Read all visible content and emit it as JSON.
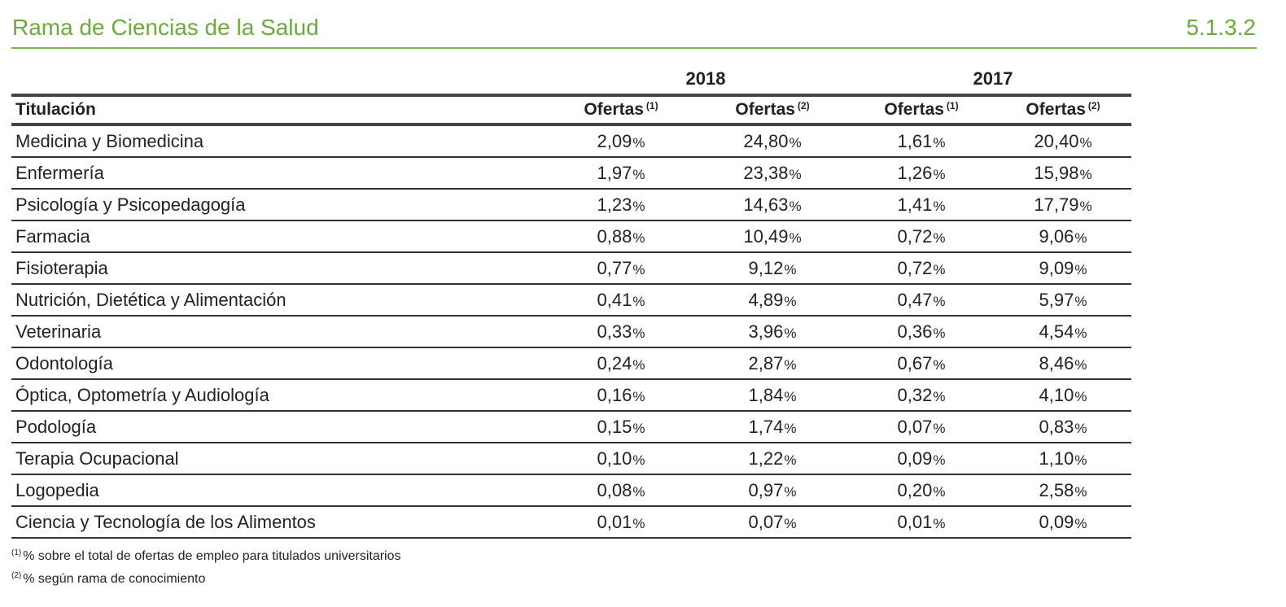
{
  "header": {
    "title": "Rama de Ciencias de la Salud",
    "section_number": "5.1.3.2"
  },
  "years": [
    "2018",
    "2017"
  ],
  "columns": {
    "title": "Titulación",
    "offers": [
      {
        "label": "Ofertas",
        "note": "(1)"
      },
      {
        "label": "Ofertas",
        "note": "(2)"
      },
      {
        "label": "Ofertas",
        "note": "(1)"
      },
      {
        "label": "Ofertas",
        "note": "(2)"
      }
    ]
  },
  "percent_sign": "%",
  "rows": [
    {
      "name": "Medicina y Biomedicina",
      "values": [
        "2,09",
        "24,80",
        "1,61",
        "20,40"
      ]
    },
    {
      "name": "Enfermería",
      "values": [
        "1,97",
        "23,38",
        "1,26",
        "15,98"
      ]
    },
    {
      "name": "Psicología y Psicopedagogía",
      "values": [
        "1,23",
        "14,63",
        "1,41",
        "17,79"
      ]
    },
    {
      "name": "Farmacia",
      "values": [
        "0,88",
        "10,49",
        "0,72",
        "9,06"
      ]
    },
    {
      "name": "Fisioterapia",
      "values": [
        "0,77",
        "9,12",
        "0,72",
        "9,09"
      ]
    },
    {
      "name": "Nutrición, Dietética y Alimentación",
      "values": [
        "0,41",
        "4,89",
        "0,47",
        "5,97"
      ]
    },
    {
      "name": "Veterinaria",
      "values": [
        "0,33",
        "3,96",
        "0,36",
        "4,54"
      ]
    },
    {
      "name": "Odontología",
      "values": [
        "0,24",
        "2,87",
        "0,67",
        "8,46"
      ]
    },
    {
      "name": "Óptica, Optometría y Audiología",
      "values": [
        "0,16",
        "1,84",
        "0,32",
        "4,10"
      ]
    },
    {
      "name": "Podología",
      "values": [
        "0,15",
        "1,74",
        "0,07",
        "0,83"
      ]
    },
    {
      "name": "Terapia Ocupacional",
      "values": [
        "0,10",
        "1,22",
        "0,09",
        "1,10"
      ]
    },
    {
      "name": "Logopedia",
      "values": [
        "0,08",
        "0,97",
        "0,20",
        "2,58"
      ]
    },
    {
      "name": "Ciencia y Tecnología de los Alimentos",
      "values": [
        "0,01",
        "0,07",
        "0,01",
        "0,09"
      ]
    }
  ],
  "footnotes": [
    {
      "mark": "(1)",
      "text": "% sobre el total de ofertas de empleo para titulados universitarios"
    },
    {
      "mark": "(2)",
      "text": "% según rama de conocimiento"
    }
  ],
  "colors": {
    "accent": "#6aab3c",
    "rule": "#7ab648",
    "table_border": "#333333"
  }
}
